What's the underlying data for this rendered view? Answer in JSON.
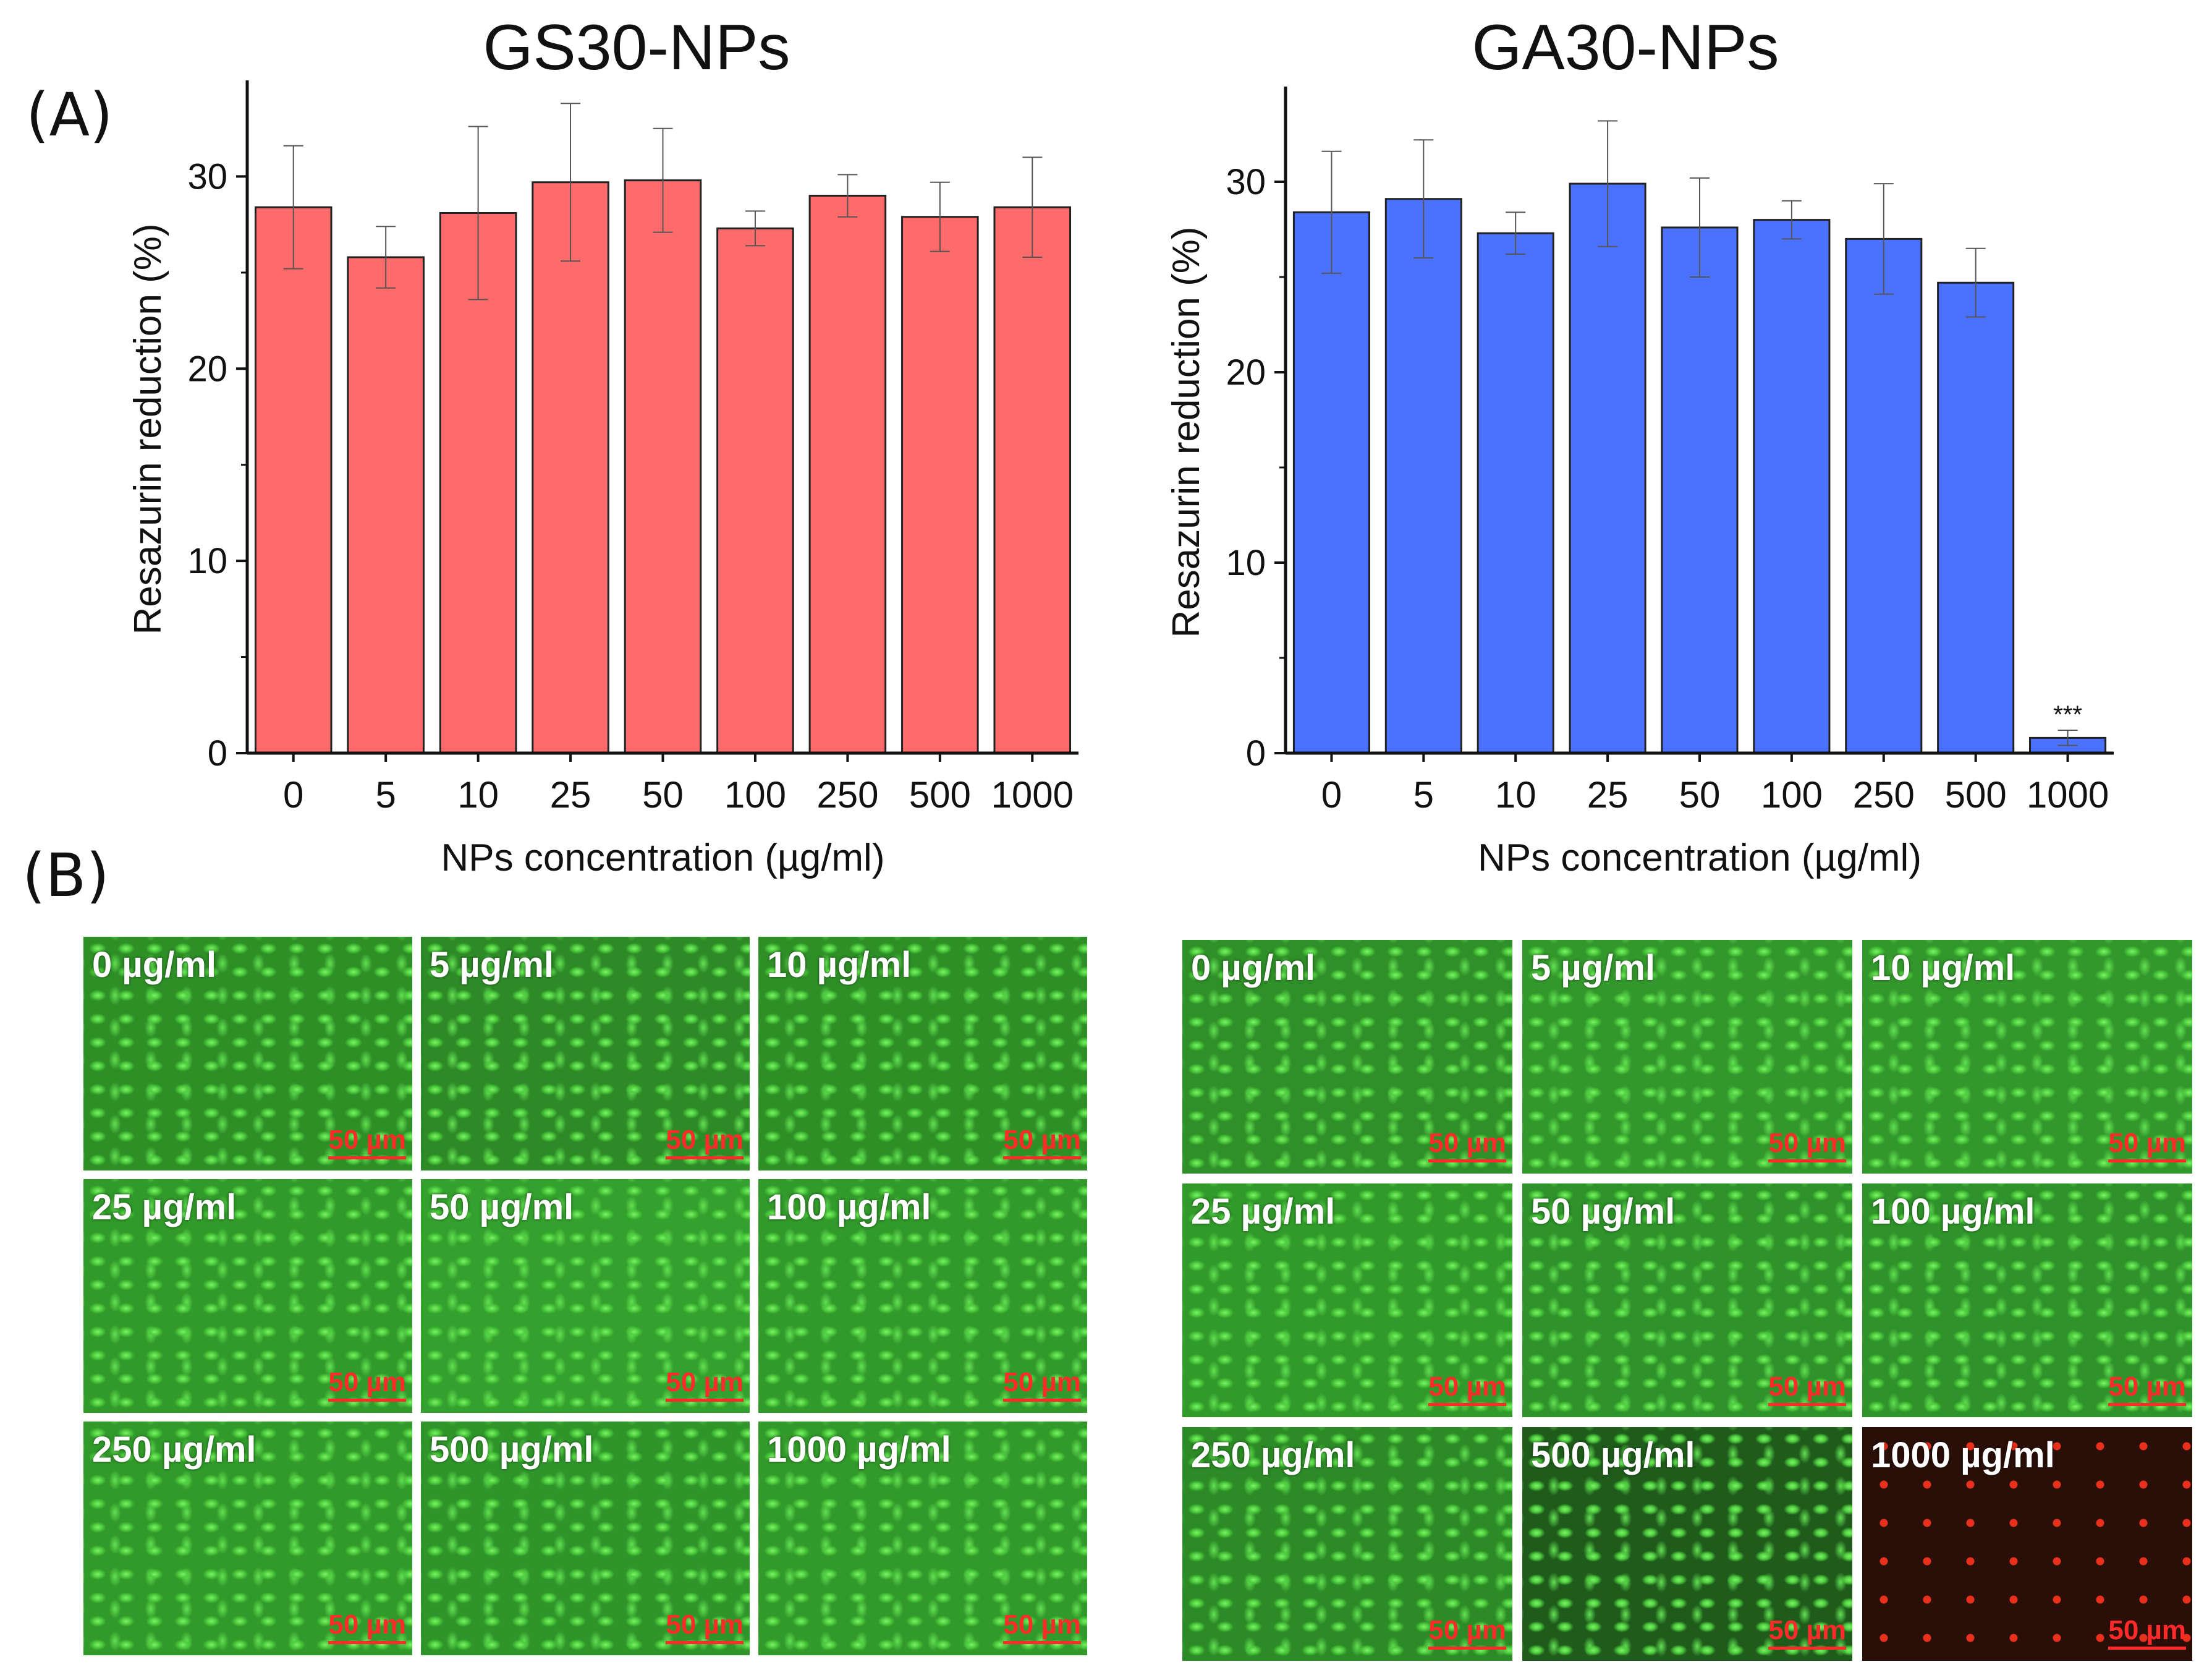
{
  "panels": {
    "a_label": "(A)",
    "b_label": "(B)"
  },
  "chart_data": [
    {
      "type": "bar",
      "title": "GS30-NPs",
      "xlabel": "NPs concentration (µg/ml)",
      "ylabel": "Resazurin reduction (%)",
      "categories": [
        "0",
        "5",
        "10",
        "25",
        "50",
        "100",
        "250",
        "500",
        "1000"
      ],
      "values": [
        28.4,
        25.8,
        28.1,
        29.7,
        29.8,
        27.3,
        29.0,
        27.9,
        28.4
      ],
      "errors": [
        3.2,
        1.6,
        4.5,
        4.1,
        2.7,
        0.9,
        1.1,
        1.8,
        2.6
      ],
      "significance": [
        "",
        "",
        "",
        "",
        "",
        "",
        "",
        "",
        ""
      ],
      "yticks": [
        0,
        10,
        20,
        30
      ],
      "ylim": [
        0,
        35
      ],
      "bar_color": "#ff6b6b"
    },
    {
      "type": "bar",
      "title": "GA30-NPs",
      "xlabel": "NPs concentration (µg/ml)",
      "ylabel": "Resazurin reduction (%)",
      "categories": [
        "0",
        "5",
        "10",
        "25",
        "50",
        "100",
        "250",
        "500",
        "1000"
      ],
      "values": [
        28.4,
        29.1,
        27.3,
        29.9,
        27.6,
        28.0,
        27.0,
        24.7,
        0.8
      ],
      "errors": [
        3.2,
        3.1,
        1.1,
        3.3,
        2.6,
        1.0,
        2.9,
        1.8,
        0.4
      ],
      "significance": [
        "",
        "",
        "",
        "",
        "",
        "",
        "",
        "",
        "***"
      ],
      "yticks": [
        0,
        10,
        20,
        30
      ],
      "ylim": [
        0,
        35
      ],
      "bar_color": "#4a72ff"
    }
  ],
  "images": {
    "scale_label": "50 µm",
    "left_group": [
      {
        "label": "0 µg/ml",
        "tone": "#2e8f27"
      },
      {
        "label": "5 µg/ml",
        "tone": "#2d8a27"
      },
      {
        "label": "10 µg/ml",
        "tone": "#2e8f27"
      },
      {
        "label": "25 µg/ml",
        "tone": "#319a2a"
      },
      {
        "label": "50 µg/ml",
        "tone": "#34a02d"
      },
      {
        "label": "100 µg/ml",
        "tone": "#32992b"
      },
      {
        "label": "250 µg/ml",
        "tone": "#319a2a"
      },
      {
        "label": "500 µg/ml",
        "tone": "#2f952a"
      },
      {
        "label": "1000 µg/ml",
        "tone": "#32992b"
      }
    ],
    "right_group": [
      {
        "label": "0 µg/ml",
        "tone": "#2f8f28"
      },
      {
        "label": "5 µg/ml",
        "tone": "#33982c"
      },
      {
        "label": "10 µg/ml",
        "tone": "#33982c"
      },
      {
        "label": "25 µg/ml",
        "tone": "#319a2a"
      },
      {
        "label": "50 µg/ml",
        "tone": "#2f922a"
      },
      {
        "label": "100 µg/ml",
        "tone": "#2f922a"
      },
      {
        "label": "250 µg/ml",
        "tone": "#2c8b26"
      },
      {
        "label": "500 µg/ml",
        "tone": "#1f5c1b"
      },
      {
        "label": "1000 µg/ml",
        "tone": "#2a0f08"
      }
    ]
  }
}
